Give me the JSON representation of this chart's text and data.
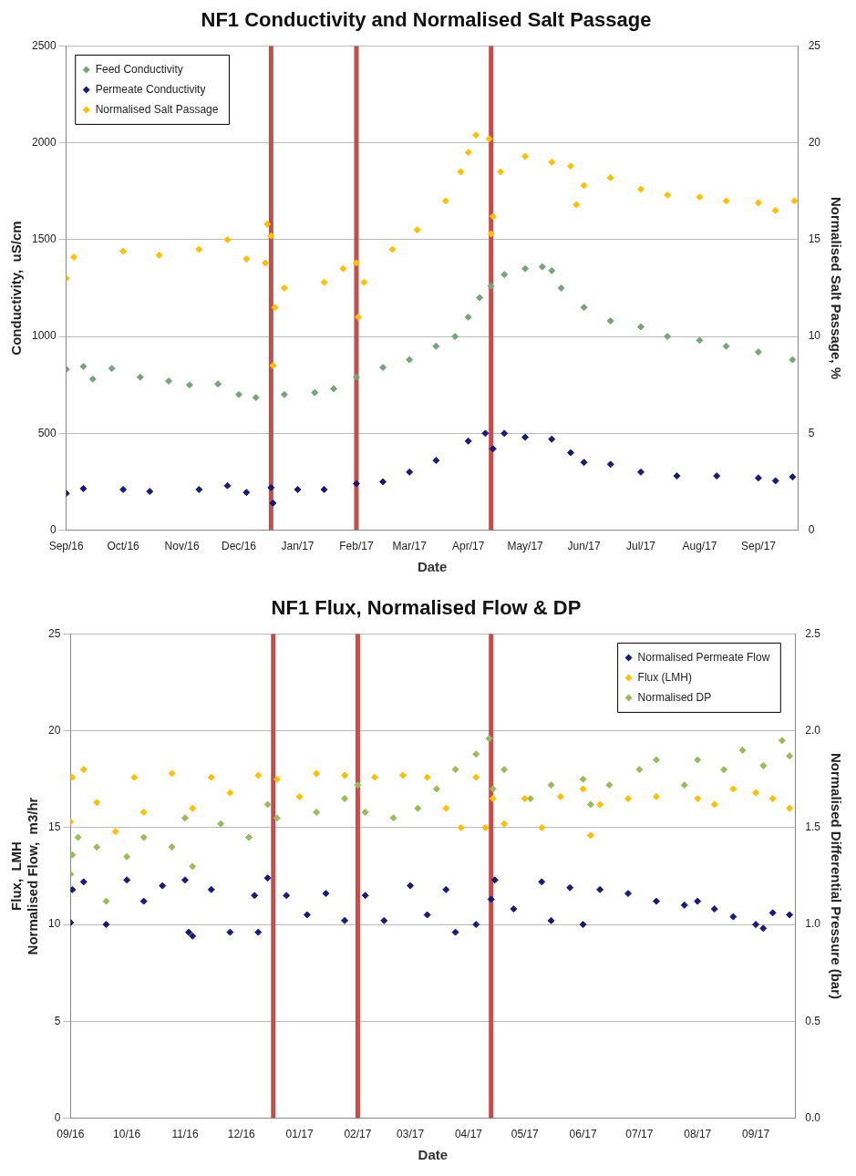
{
  "chart_data": [
    {
      "type": "scatter",
      "title": "NF1 Conductivity and Normalised Salt Passage",
      "xlabel": "Date",
      "ylabel": "Conductivity,  uS/cm",
      "y2label": "Normalised Salt Passage, %",
      "xlim": [
        "2016-09-01",
        "2017-09-22"
      ],
      "xticks": [
        {
          "value": "2016-09-01",
          "label": "Sep/16"
        },
        {
          "value": "2016-10-01",
          "label": "Oct/16"
        },
        {
          "value": "2016-11-01",
          "label": "Nov/16"
        },
        {
          "value": "2016-12-01",
          "label": "Dec/16"
        },
        {
          "value": "2017-01-01",
          "label": "Jan/17"
        },
        {
          "value": "2017-02-01",
          "label": "Feb/17"
        },
        {
          "value": "2017-03-01",
          "label": "Mar/17"
        },
        {
          "value": "2017-04-01",
          "label": "Apr/17"
        },
        {
          "value": "2017-05-01",
          "label": "May/17"
        },
        {
          "value": "2017-06-01",
          "label": "Jun/17"
        },
        {
          "value": "2017-07-01",
          "label": "Jul/17"
        },
        {
          "value": "2017-08-01",
          "label": "Aug/17"
        },
        {
          "value": "2017-09-01",
          "label": "Sep/17"
        }
      ],
      "ylim": [
        0,
        2500
      ],
      "yticks": [
        0,
        500,
        1000,
        1500,
        2000,
        2500
      ],
      "y2lim": [
        0,
        25
      ],
      "y2ticks": [
        0,
        5,
        10,
        15,
        20,
        25
      ],
      "grid": "y",
      "legend": "top left",
      "marker": "diamond",
      "ref_lines": [
        {
          "axis": "x",
          "value": "2016-12-18",
          "color": "#c0504d"
        },
        {
          "axis": "x",
          "value": "2017-02-01",
          "color": "#c0504d"
        },
        {
          "axis": "x",
          "value": "2017-04-13",
          "color": "#c0504d"
        }
      ],
      "series": [
        {
          "name": "Feed Conductivity",
          "color": "#77a47a",
          "x": [
            "2016-09-01",
            "2016-09-10",
            "2016-09-15",
            "2016-09-25",
            "2016-10-10",
            "2016-10-25",
            "2016-11-05",
            "2016-11-20",
            "2016-12-01",
            "2016-12-10",
            "2016-12-25",
            "2017-01-10",
            "2017-01-20",
            "2017-02-01",
            "2017-02-15",
            "2017-03-01",
            "2017-03-15",
            "2017-03-25",
            "2017-04-01",
            "2017-04-07",
            "2017-04-13",
            "2017-04-20",
            "2017-05-01",
            "2017-05-10",
            "2017-05-15",
            "2017-05-20",
            "2017-06-01",
            "2017-06-15",
            "2017-07-01",
            "2017-07-15",
            "2017-08-01",
            "2017-08-15",
            "2017-09-01",
            "2017-09-19"
          ],
          "values": [
            830,
            845,
            780,
            835,
            790,
            770,
            750,
            755,
            700,
            685,
            700,
            710,
            730,
            790,
            840,
            880,
            950,
            1000,
            1100,
            1200,
            1260,
            1320,
            1350,
            1360,
            1340,
            1250,
            1150,
            1080,
            1050,
            1000,
            980,
            950,
            920,
            880
          ]
        },
        {
          "name": "Permeate Conductivity",
          "color": "#1a1a7a",
          "x": [
            "2016-09-01",
            "2016-09-10",
            "2016-10-01",
            "2016-10-15",
            "2016-11-10",
            "2016-11-25",
            "2016-12-05",
            "2016-12-18",
            "2016-12-19",
            "2017-01-01",
            "2017-01-15",
            "2017-02-01",
            "2017-02-15",
            "2017-03-01",
            "2017-03-15",
            "2017-04-01",
            "2017-04-10",
            "2017-04-14",
            "2017-04-20",
            "2017-05-01",
            "2017-05-15",
            "2017-05-25",
            "2017-06-01",
            "2017-06-15",
            "2017-07-01",
            "2017-07-20",
            "2017-08-10",
            "2017-09-01",
            "2017-09-10",
            "2017-09-19"
          ],
          "values": [
            190,
            215,
            210,
            200,
            210,
            230,
            195,
            220,
            140,
            210,
            210,
            240,
            250,
            300,
            360,
            460,
            500,
            420,
            500,
            480,
            470,
            400,
            350,
            340,
            300,
            280,
            280,
            270,
            255,
            275
          ]
        },
        {
          "name": "Normalised Salt Passage",
          "color": "#ffc000",
          "axis": "y2",
          "x": [
            "2016-09-01",
            "2016-09-05",
            "2016-10-01",
            "2016-10-20",
            "2016-11-10",
            "2016-11-25",
            "2016-12-05",
            "2016-12-15",
            "2016-12-16",
            "2016-12-18",
            "2016-12-19",
            "2016-12-20",
            "2016-12-25",
            "2017-01-15",
            "2017-01-25",
            "2017-02-01",
            "2017-02-02",
            "2017-02-05",
            "2017-02-20",
            "2017-03-05",
            "2017-03-20",
            "2017-03-28",
            "2017-04-01",
            "2017-04-05",
            "2017-04-12",
            "2017-04-13",
            "2017-04-14",
            "2017-04-18",
            "2017-05-01",
            "2017-05-15",
            "2017-05-25",
            "2017-05-28",
            "2017-06-01",
            "2017-06-15",
            "2017-07-01",
            "2017-07-15",
            "2017-08-01",
            "2017-08-15",
            "2017-09-01",
            "2017-09-10",
            "2017-09-20"
          ],
          "values": [
            13.0,
            14.1,
            14.4,
            14.2,
            14.5,
            15.0,
            14.0,
            13.8,
            15.8,
            15.2,
            8.5,
            11.5,
            12.5,
            12.8,
            13.5,
            13.8,
            11.0,
            12.8,
            14.5,
            15.5,
            17.0,
            18.5,
            19.5,
            20.4,
            20.2,
            15.3,
            16.2,
            18.5,
            19.3,
            19.0,
            18.8,
            16.8,
            17.8,
            18.2,
            17.6,
            17.3,
            17.2,
            17.0,
            16.9,
            16.5,
            17.0
          ]
        }
      ]
    },
    {
      "type": "scatter",
      "title": "NF1 Flux, Normalised Flow & DP",
      "xlabel": "Date",
      "ylabel": "Flux,  LMH\nNormalised Flow,  m3/hr",
      "y2label": "Normalised Differential Pressure (bar)",
      "xlim": [
        "2016-09-01",
        "2017-09-22"
      ],
      "xticks": [
        {
          "value": "2016-09-01",
          "label": "09/16"
        },
        {
          "value": "2016-10-01",
          "label": "10/16"
        },
        {
          "value": "2016-11-01",
          "label": "11/16"
        },
        {
          "value": "2016-12-01",
          "label": "12/16"
        },
        {
          "value": "2017-01-01",
          "label": "01/17"
        },
        {
          "value": "2017-02-01",
          "label": "02/17"
        },
        {
          "value": "2017-03-01",
          "label": "03/17"
        },
        {
          "value": "2017-04-01",
          "label": "04/17"
        },
        {
          "value": "2017-05-01",
          "label": "05/17"
        },
        {
          "value": "2017-06-01",
          "label": "06/17"
        },
        {
          "value": "2017-07-01",
          "label": "07/17"
        },
        {
          "value": "2017-08-01",
          "label": "08/17"
        },
        {
          "value": "2017-09-01",
          "label": "09/17"
        }
      ],
      "ylim": [
        0,
        25
      ],
      "yticks": [
        0,
        5,
        10,
        15,
        20,
        25
      ],
      "y2lim": [
        0,
        2.5
      ],
      "y2ticks": [
        {
          "value": 0,
          "label": "0.0"
        },
        0.5,
        {
          "value": 1,
          "label": "1.0"
        },
        1.5,
        {
          "value": 2,
          "label": "2.0"
        },
        2.5
      ],
      "grid": "y",
      "legend": "top right",
      "marker": "diamond",
      "ref_lines": [
        {
          "axis": "x",
          "value": "2016-12-18",
          "color": "#c0504d"
        },
        {
          "axis": "x",
          "value": "2017-02-01",
          "color": "#c0504d"
        },
        {
          "axis": "x",
          "value": "2017-04-13",
          "color": "#c0504d"
        }
      ],
      "series": [
        {
          "name": "Normalised Permeate Flow",
          "color": "#1a1a7a",
          "x": [
            "2016-09-01",
            "2016-09-02",
            "2016-09-08",
            "2016-09-20",
            "2016-10-01",
            "2016-10-10",
            "2016-10-20",
            "2016-11-01",
            "2016-11-03",
            "2016-11-05",
            "2016-11-15",
            "2016-11-25",
            "2016-12-08",
            "2016-12-10",
            "2016-12-15",
            "2016-12-25",
            "2017-01-05",
            "2017-01-15",
            "2017-01-25",
            "2017-02-05",
            "2017-02-15",
            "2017-03-01",
            "2017-03-10",
            "2017-03-20",
            "2017-03-25",
            "2017-04-05",
            "2017-04-13",
            "2017-04-15",
            "2017-04-25",
            "2017-05-10",
            "2017-05-15",
            "2017-05-25",
            "2017-06-01",
            "2017-06-10",
            "2017-06-25",
            "2017-07-10",
            "2017-07-25",
            "2017-08-01",
            "2017-08-10",
            "2017-08-20",
            "2017-09-01",
            "2017-09-05",
            "2017-09-10",
            "2017-09-19"
          ],
          "values": [
            10.1,
            11.8,
            12.2,
            10.0,
            12.3,
            11.2,
            12.0,
            12.3,
            9.6,
            9.4,
            11.8,
            9.6,
            11.5,
            9.6,
            12.4,
            11.5,
            10.5,
            11.6,
            10.2,
            11.5,
            10.2,
            12.0,
            10.5,
            11.8,
            9.6,
            10.0,
            11.3,
            12.3,
            10.8,
            12.2,
            10.2,
            11.9,
            10.0,
            11.8,
            11.6,
            11.2,
            11.0,
            11.2,
            10.8,
            10.4,
            10.0,
            9.8,
            10.6,
            10.5
          ]
        },
        {
          "name": "Flux (LMH)",
          "color": "#ffc000",
          "x": [
            "2016-09-01",
            "2016-09-02",
            "2016-09-08",
            "2016-09-15",
            "2016-09-25",
            "2016-10-05",
            "2016-10-10",
            "2016-10-25",
            "2016-11-05",
            "2016-11-15",
            "2016-11-25",
            "2016-12-10",
            "2016-12-20",
            "2017-01-01",
            "2017-01-10",
            "2017-01-25",
            "2017-02-10",
            "2017-02-25",
            "2017-03-10",
            "2017-03-20",
            "2017-03-28",
            "2017-04-05",
            "2017-04-10",
            "2017-04-14",
            "2017-04-20",
            "2017-05-01",
            "2017-05-10",
            "2017-05-20",
            "2017-06-01",
            "2017-06-05",
            "2017-06-10",
            "2017-06-25",
            "2017-07-10",
            "2017-08-01",
            "2017-08-10",
            "2017-08-20",
            "2017-09-01",
            "2017-09-10",
            "2017-09-19"
          ],
          "values": [
            15.3,
            17.6,
            18.0,
            16.3,
            14.8,
            17.6,
            15.8,
            17.8,
            16.0,
            17.6,
            16.8,
            17.7,
            17.5,
            16.6,
            17.8,
            17.7,
            17.6,
            17.7,
            17.6,
            16.0,
            15.0,
            17.6,
            15.0,
            16.5,
            15.2,
            16.5,
            15.0,
            16.6,
            17.0,
            14.6,
            16.2,
            16.5,
            16.6,
            16.5,
            16.2,
            17.0,
            16.8,
            16.5,
            16.0
          ]
        },
        {
          "name": "Normalised DP",
          "color": "#9bbb59",
          "axis": "y2",
          "x": [
            "2016-09-01",
            "2016-09-02",
            "2016-09-05",
            "2016-09-15",
            "2016-09-20",
            "2016-10-01",
            "2016-10-10",
            "2016-10-25",
            "2016-11-01",
            "2016-11-05",
            "2016-11-20",
            "2016-12-05",
            "2016-12-15",
            "2016-12-20",
            "2017-01-10",
            "2017-01-25",
            "2017-02-01",
            "2017-02-05",
            "2017-02-20",
            "2017-03-05",
            "2017-03-15",
            "2017-03-25",
            "2017-04-05",
            "2017-04-12",
            "2017-04-14",
            "2017-04-20",
            "2017-05-04",
            "2017-05-15",
            "2017-06-01",
            "2017-06-05",
            "2017-06-15",
            "2017-07-01",
            "2017-07-10",
            "2017-07-25",
            "2017-08-01",
            "2017-08-15",
            "2017-08-25",
            "2017-09-05",
            "2017-09-15",
            "2017-09-19"
          ],
          "values": [
            1.26,
            1.36,
            1.45,
            1.4,
            1.12,
            1.35,
            1.45,
            1.4,
            1.55,
            1.3,
            1.52,
            1.45,
            1.62,
            1.55,
            1.58,
            1.65,
            1.72,
            1.58,
            1.55,
            1.6,
            1.7,
            1.8,
            1.88,
            1.96,
            1.7,
            1.8,
            1.65,
            1.72,
            1.75,
            1.62,
            1.72,
            1.8,
            1.85,
            1.72,
            1.85,
            1.8,
            1.9,
            1.82,
            1.95,
            1.87
          ]
        }
      ]
    }
  ]
}
